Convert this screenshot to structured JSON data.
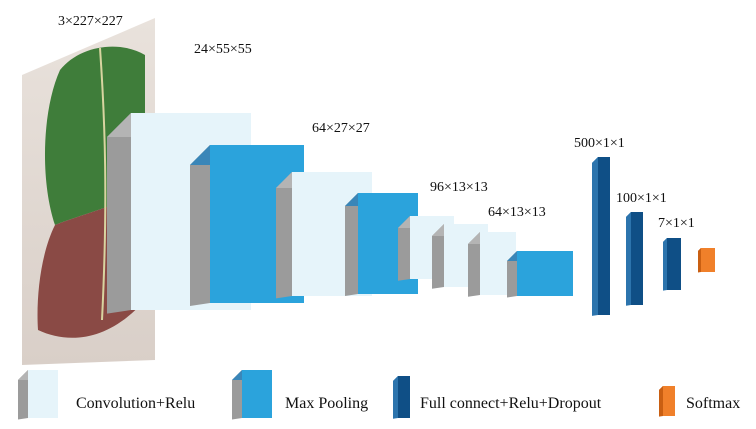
{
  "colors": {
    "conv_front": "#e6f4fa",
    "pool_front": "#2ba3dc",
    "pool_top": "#3a86b8",
    "fc_front": "#0f4f86",
    "fc_top": "#2c74ad",
    "softmax_front": "#f0802a",
    "softmax_top": "#c95f12",
    "side": "#9b9b9b",
    "top": "#b4b4b4",
    "leaf_green": "#3f7d3a",
    "leaf_red": "#8a4a45"
  },
  "input_image": {
    "label": "3×227×227",
    "description_icon": "leaf-image"
  },
  "size_labels": [
    {
      "id": "l24",
      "text": "24×55×55"
    },
    {
      "id": "l64a",
      "text": "64×27×27"
    },
    {
      "id": "l96",
      "text": "96×13×13"
    },
    {
      "id": "l64b",
      "text": "64×13×13"
    },
    {
      "id": "l500",
      "text": "500×1×1"
    },
    {
      "id": "l100",
      "text": "100×1×1"
    },
    {
      "id": "l7",
      "text": "7×1×1"
    }
  ],
  "layers": [
    {
      "id": "conv1",
      "type": "conv"
    },
    {
      "id": "pool1",
      "type": "pool"
    },
    {
      "id": "conv2",
      "type": "conv"
    },
    {
      "id": "pool2",
      "type": "pool"
    },
    {
      "id": "conv3",
      "type": "conv"
    },
    {
      "id": "conv4",
      "type": "conv"
    },
    {
      "id": "conv5",
      "type": "conv"
    },
    {
      "id": "pool3",
      "type": "pool"
    },
    {
      "id": "fc1",
      "type": "fc"
    },
    {
      "id": "fc2",
      "type": "fc"
    },
    {
      "id": "fc3",
      "type": "fc"
    },
    {
      "id": "softmax",
      "type": "softmax"
    }
  ],
  "legend": [
    {
      "type": "conv",
      "label": "Convolution+Relu"
    },
    {
      "type": "pool",
      "label": "Max Pooling"
    },
    {
      "type": "fc",
      "label": "Full connect+Relu+Dropout"
    },
    {
      "type": "softmax",
      "label": "Softmax"
    }
  ]
}
